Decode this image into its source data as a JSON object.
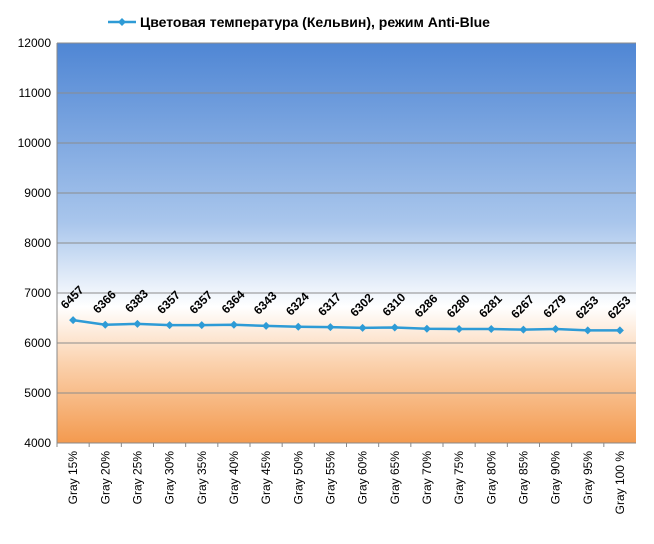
{
  "chart_data": {
    "type": "line",
    "categories": [
      "Gray 15%",
      "Gray 20%",
      "Gray 25%",
      "Gray 30%",
      "Gray 35%",
      "Gray 40%",
      "Gray 45%",
      "Gray 50%",
      "Gray 55%",
      "Gray 60%",
      "Gray 65%",
      "Gray 70%",
      "Gray 75%",
      "Gray 80%",
      "Gray 85%",
      "Gray 90%",
      "Gray 95%",
      "Gray 100 %"
    ],
    "series": [
      {
        "name": "Цветовая температура (Кельвин), режим Anti-Blue",
        "color": "#2e9bd6",
        "values": [
          6457,
          6366,
          6383,
          6357,
          6357,
          6364,
          6343,
          6324,
          6317,
          6302,
          6310,
          6286,
          6280,
          6281,
          6267,
          6279,
          6253,
          6253
        ]
      }
    ],
    "ylim": [
      4000,
      12000
    ],
    "yticks": [
      4000,
      5000,
      6000,
      7000,
      8000,
      9000,
      10000,
      11000,
      12000
    ],
    "grid": true,
    "legend": "top"
  }
}
